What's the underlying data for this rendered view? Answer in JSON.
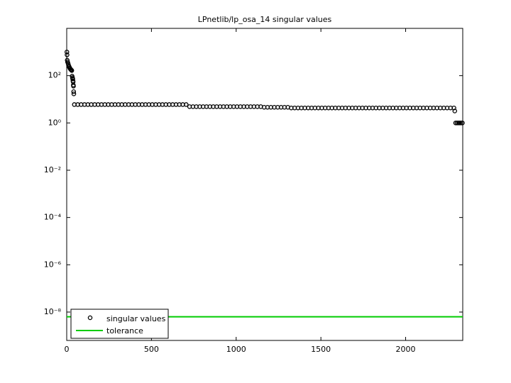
{
  "chart_data": {
    "type": "scatter",
    "title": "LPnetlib/lp_osa_14 singular values",
    "log_y": true,
    "legend": "lower left",
    "xlim": [
      0,
      2337
    ],
    "xticks": [
      0,
      500,
      1000,
      1500,
      2000
    ],
    "ylim": [
      6.3e-10,
      10000
    ],
    "yticks": [
      {
        "value": 1e-08,
        "label": "10⁻⁸"
      },
      {
        "value": 1e-06,
        "label": "10⁻⁶"
      },
      {
        "value": 0.0001,
        "label": "10⁻⁴"
      },
      {
        "value": 0.01,
        "label": "10⁻²"
      },
      {
        "value": 1,
        "label": "10⁰"
      },
      {
        "value": 100,
        "label": "10²"
      }
    ],
    "series": [
      {
        "name": "singular values",
        "color": "#000000",
        "x": [
          1,
          2,
          3,
          5,
          8,
          10,
          13,
          15,
          18,
          20,
          23,
          25,
          28,
          30,
          32,
          34,
          35,
          36,
          37,
          38,
          39,
          40,
          41,
          42,
          45,
          65,
          85,
          105,
          125,
          145,
          165,
          185,
          205,
          225,
          245,
          265,
          285,
          305,
          325,
          345,
          365,
          385,
          405,
          425,
          445,
          465,
          485,
          505,
          525,
          545,
          565,
          585,
          605,
          625,
          645,
          665,
          685,
          705,
          725,
          745,
          765,
          785,
          805,
          825,
          845,
          865,
          885,
          905,
          925,
          945,
          965,
          985,
          1005,
          1025,
          1045,
          1065,
          1085,
          1105,
          1125,
          1145,
          1165,
          1185,
          1205,
          1225,
          1245,
          1265,
          1285,
          1305,
          1325,
          1345,
          1365,
          1385,
          1405,
          1425,
          1445,
          1465,
          1485,
          1505,
          1525,
          1545,
          1565,
          1585,
          1605,
          1625,
          1645,
          1665,
          1685,
          1705,
          1725,
          1745,
          1765,
          1785,
          1805,
          1825,
          1845,
          1865,
          1885,
          1905,
          1925,
          1945,
          1965,
          1985,
          2005,
          2025,
          2045,
          2065,
          2085,
          2105,
          2125,
          2145,
          2165,
          2185,
          2205,
          2225,
          2245,
          2265,
          2285,
          2290,
          2295,
          2303,
          2311,
          2319,
          2327,
          2335
        ],
        "values": [
          1000,
          760,
          450,
          380,
          330,
          290,
          250,
          235,
          210,
          200,
          185,
          180,
          170,
          165,
          95,
          83,
          75,
          72,
          60,
          55,
          40,
          36,
          21,
          17,
          6,
          6,
          6,
          6,
          6,
          6,
          6,
          6,
          6,
          6,
          6,
          6,
          6,
          6,
          6,
          6,
          6,
          6,
          6,
          6,
          6,
          6,
          6,
          6,
          6,
          6,
          6,
          6,
          6,
          6,
          6,
          6,
          6,
          6,
          4.9,
          4.9,
          4.9,
          4.9,
          4.9,
          4.9,
          4.9,
          4.9,
          4.9,
          4.9,
          4.9,
          4.9,
          4.9,
          4.9,
          4.9,
          4.9,
          4.9,
          4.9,
          4.9,
          4.9,
          4.9,
          4.9,
          4.6,
          4.6,
          4.6,
          4.6,
          4.6,
          4.6,
          4.6,
          4.6,
          4.3,
          4.3,
          4.3,
          4.3,
          4.3,
          4.3,
          4.3,
          4.3,
          4.3,
          4.3,
          4.3,
          4.3,
          4.3,
          4.3,
          4.3,
          4.3,
          4.3,
          4.3,
          4.3,
          4.3,
          4.3,
          4.3,
          4.3,
          4.3,
          4.3,
          4.3,
          4.3,
          4.3,
          4.3,
          4.3,
          4.3,
          4.3,
          4.3,
          4.3,
          4.3,
          4.3,
          4.3,
          4.3,
          4.3,
          4.3,
          4.3,
          4.3,
          4.3,
          4.3,
          4.3,
          4.3,
          4.3,
          4.3,
          4.3,
          3.2,
          1,
          1,
          1,
          1,
          1,
          1
        ]
      }
    ],
    "tolerance": {
      "name": "tolerance",
      "value": 6.3e-09,
      "color": "#00cc00"
    }
  }
}
